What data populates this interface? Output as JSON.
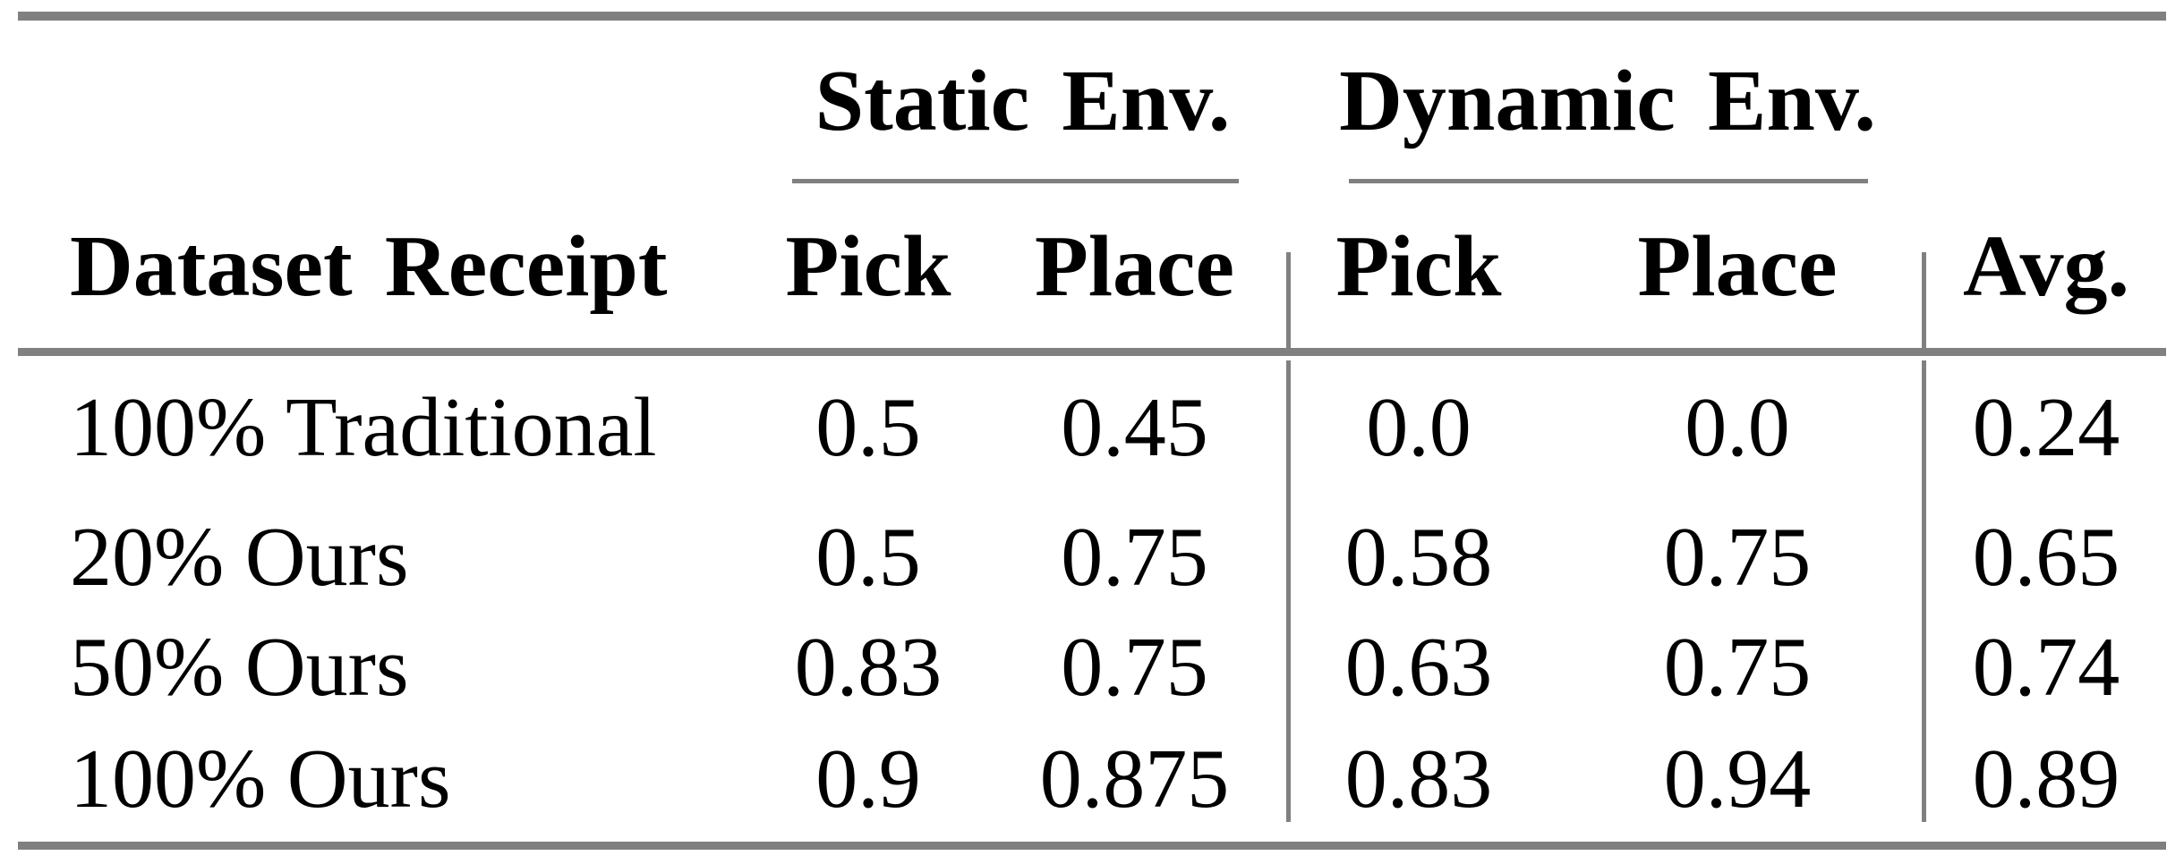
{
  "table": {
    "group_headers": {
      "static": "Static Env.",
      "dynamic": "Dynamic Env."
    },
    "columns": [
      "Dataset Receipt",
      "Pick",
      "Place",
      "Pick",
      "Place",
      "Avg."
    ],
    "rows": [
      {
        "label": "100% Traditional",
        "values": [
          "0.5",
          "0.45",
          "0.0",
          "0.0",
          "0.24"
        ]
      },
      {
        "label": "20% Ours",
        "values": [
          "0.5",
          "0.75",
          "0.58",
          "0.75",
          "0.65"
        ]
      },
      {
        "label": "50% Ours",
        "values": [
          "0.83",
          "0.75",
          "0.63",
          "0.75",
          "0.74"
        ]
      },
      {
        "label": "100% Ours",
        "values": [
          "0.9",
          "0.875",
          "0.83",
          "0.94",
          "0.89"
        ]
      }
    ]
  },
  "colors": {
    "rule_gray": "#808080",
    "text": "#000000",
    "background": "#ffffff"
  }
}
